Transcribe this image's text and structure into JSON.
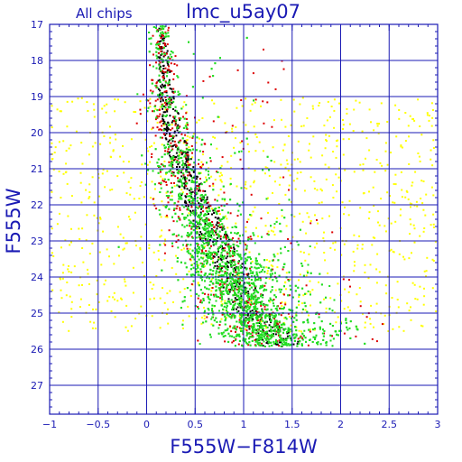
{
  "title_left": "All chips",
  "title_main": "lmc_u5ay07",
  "chart_data": {
    "type": "scatter",
    "title": "lmc_u5ay07",
    "subtitle": "All chips",
    "xlabel": "F555W−F814W",
    "ylabel": "F555W",
    "xlim": [
      -1,
      3
    ],
    "ylim": [
      27.8,
      17
    ],
    "y_inverted": true,
    "grid": true,
    "x_ticks": [
      -1,
      -0.5,
      0,
      0.5,
      1,
      1.5,
      2,
      2.5,
      3
    ],
    "x_tick_labels": [
      "−1",
      "−0.5",
      "0",
      "0.5",
      "1",
      "1.5",
      "2",
      "2.5",
      "3"
    ],
    "y_ticks": [
      17,
      18,
      19,
      20,
      21,
      22,
      23,
      24,
      25,
      26,
      27
    ],
    "y_tick_labels": [
      "17",
      "18",
      "19",
      "20",
      "21",
      "22",
      "23",
      "24",
      "25",
      "26",
      "27"
    ],
    "colors": {
      "axis": "#1a1ab4",
      "grid": "#1a1ab4",
      "black_stars": "#000000",
      "red_stars": "#dd0000",
      "green_stars": "#22dd22",
      "yellow_stars": "#ffff00"
    },
    "series": [
      {
        "color": "#ffff00",
        "distribution": "broad field scatter",
        "x_range": [
          -1,
          3
        ],
        "y_range": [
          19,
          25.5
        ],
        "approx_count": 950
      },
      {
        "color": "#000000",
        "distribution": "blue edge of sequence",
        "sequence_color_at_mag": [
          [
            17.0,
            0.13
          ],
          [
            19.0,
            0.17
          ],
          [
            21.0,
            0.33
          ],
          [
            23.0,
            0.65
          ],
          [
            25.0,
            1.05
          ],
          [
            26.0,
            1.35
          ]
        ],
        "approx_count": 600
      },
      {
        "color": "#dd0000",
        "distribution": "along sequence",
        "sequence_color_at_mag": [
          [
            17.0,
            0.13
          ],
          [
            19.0,
            0.17
          ],
          [
            21.0,
            0.33
          ],
          [
            23.0,
            0.65
          ],
          [
            25.0,
            1.05
          ],
          [
            26.0,
            1.35
          ]
        ],
        "approx_count": 550
      },
      {
        "color": "#22dd22",
        "distribution": "dense main sequence",
        "sequence_color_at_mag": [
          [
            17.0,
            0.13
          ],
          [
            19.0,
            0.17
          ],
          [
            21.0,
            0.33
          ],
          [
            23.0,
            0.65
          ],
          [
            25.0,
            1.05
          ],
          [
            26.0,
            1.35
          ]
        ],
        "approx_count": 3200
      }
    ]
  }
}
